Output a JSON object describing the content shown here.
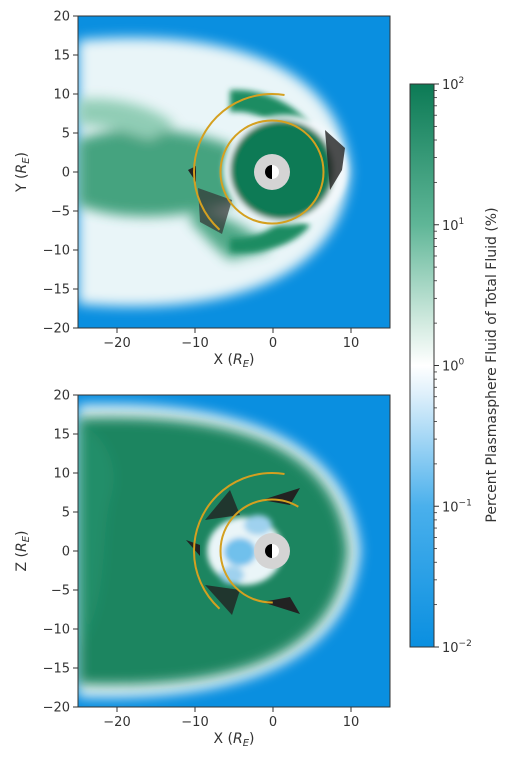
{
  "chart_data": [
    {
      "type": "heatmap",
      "name": "top-panel",
      "xlabel": "X",
      "xlabel_sub": "E",
      "ylabel": "Y",
      "ylabel_sub": "E",
      "unit_prefix": "R",
      "xlim": [
        -25,
        15
      ],
      "ylim": [
        -20,
        20
      ],
      "xticks": [
        -20,
        -10,
        0,
        10
      ],
      "yticks": [
        -20,
        -15,
        -10,
        -5,
        0,
        5,
        10,
        15,
        20
      ],
      "circles": [
        {
          "center": [
            0,
            0
          ],
          "radius": 6.6
        },
        {
          "center": [
            0,
            0
          ],
          "radius": 10
        }
      ]
    },
    {
      "type": "heatmap",
      "name": "bottom-panel",
      "xlabel": "X",
      "xlabel_sub": "E",
      "ylabel": "Z",
      "ylabel_sub": "E",
      "unit_prefix": "R",
      "xlim": [
        -25,
        15
      ],
      "ylim": [
        -20,
        20
      ],
      "xticks": [
        -20,
        -10,
        0,
        10
      ],
      "yticks": [
        -20,
        -15,
        -10,
        -5,
        0,
        5,
        10,
        15,
        20
      ],
      "circles": [
        {
          "center": [
            0,
            0
          ],
          "radius": 6.6
        },
        {
          "center": [
            0,
            0
          ],
          "radius": 10
        }
      ]
    }
  ],
  "colorbar": {
    "label": "Percent Plasmasphere Fluid of Total Fluid (%)",
    "scale": "log",
    "base": "10",
    "range": [
      0.01,
      100
    ],
    "ticks": [
      {
        "value": 100,
        "exp": "2"
      },
      {
        "value": 10,
        "exp": "1"
      },
      {
        "value": 1,
        "exp": "0"
      },
      {
        "value": 0.1,
        "exp": "−1"
      },
      {
        "value": 0.01,
        "exp": "−2"
      }
    ],
    "colors": [
      "#0a8fe0",
      "#4ab0ec",
      "#ffffff",
      "#5fb697",
      "#0c7a55"
    ]
  },
  "colors": {
    "background_low": "#0a8fe0",
    "high": "#0c7a55",
    "orbit_line": "#d4a020",
    "planet_ring": "#d4d4d4"
  }
}
